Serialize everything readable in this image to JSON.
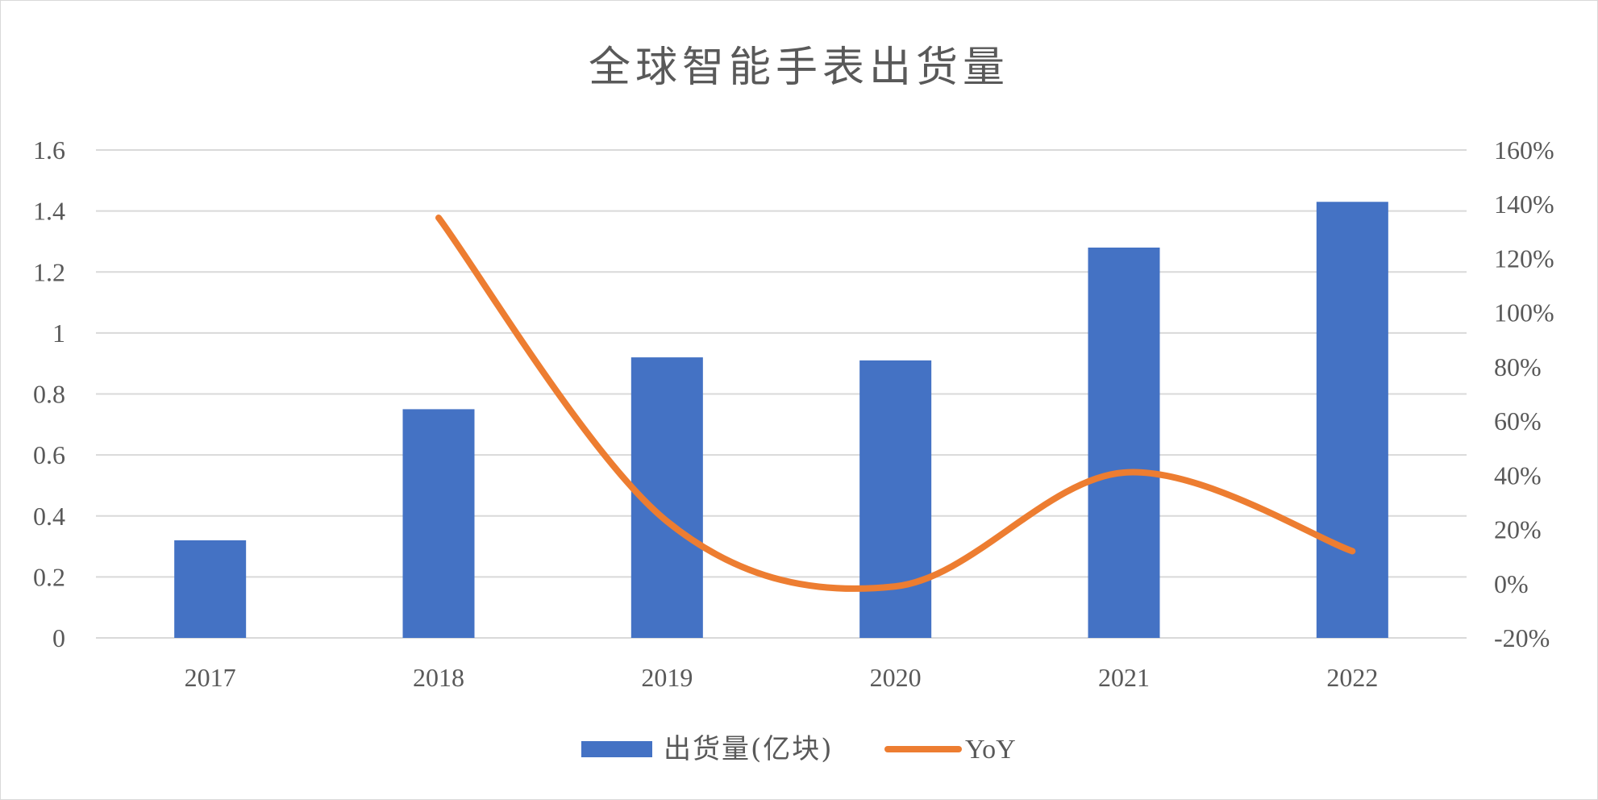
{
  "chart_data": {
    "type": "bar",
    "title": "全球智能手表出货量",
    "categories": [
      "2017",
      "2018",
      "2019",
      "2020",
      "2021",
      "2022"
    ],
    "series": [
      {
        "name": "出货量(亿块)",
        "type": "bar",
        "axis": "left",
        "color": "#4472C4",
        "values": [
          0.32,
          0.75,
          0.92,
          0.91,
          1.28,
          1.43
        ]
      },
      {
        "name": "YoY",
        "type": "line",
        "smooth": true,
        "axis": "right",
        "color": "#ED7D31",
        "values": [
          null,
          1.35,
          0.23,
          -0.01,
          0.41,
          0.12
        ]
      }
    ],
    "y_left": {
      "ylim": [
        0,
        1.6
      ],
      "ticks": [
        0,
        0.2,
        0.4,
        0.6,
        0.8,
        1.0,
        1.2,
        1.4,
        1.6
      ],
      "tick_labels": [
        "0",
        "0.2",
        "0.4",
        "0.6",
        "0.8",
        "1",
        "1.2",
        "1.4",
        "1.6"
      ]
    },
    "y_right": {
      "ylim": [
        -0.2,
        1.6
      ],
      "ticks": [
        -0.2,
        0,
        0.2,
        0.4,
        0.6,
        0.8,
        1.0,
        1.2,
        1.4,
        1.6
      ],
      "tick_labels": [
        "-20%",
        "0%",
        "20%",
        "40%",
        "60%",
        "80%",
        "100%",
        "120%",
        "140%",
        "160%"
      ]
    },
    "grid": true,
    "legend": "bottom",
    "xlabel": "",
    "ylabel": ""
  }
}
